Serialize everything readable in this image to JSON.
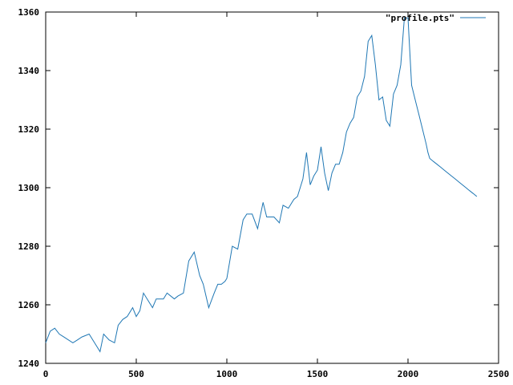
{
  "chart_data": {
    "type": "line",
    "title": "",
    "xlabel": "",
    "ylabel": "",
    "xlim": [
      0,
      2500
    ],
    "ylim": [
      1240,
      1360
    ],
    "xticks": [
      0,
      500,
      1000,
      1500,
      2000,
      2500
    ],
    "yticks": [
      1240,
      1260,
      1280,
      1300,
      1320,
      1340,
      1360
    ],
    "grid": false,
    "legend_position": "top-right",
    "series": [
      {
        "name": "\"profile.pts\"",
        "color": "#1f77b4",
        "x": [
          0,
          25,
          50,
          75,
          100,
          150,
          175,
          200,
          240,
          280,
          300,
          320,
          350,
          380,
          400,
          425,
          450,
          480,
          500,
          520,
          540,
          570,
          590,
          610,
          650,
          670,
          710,
          730,
          760,
          790,
          820,
          850,
          870,
          900,
          930,
          950,
          970,
          990,
          1000,
          1030,
          1060,
          1090,
          1110,
          1140,
          1170,
          1200,
          1220,
          1260,
          1290,
          1310,
          1340,
          1370,
          1390,
          1420,
          1440,
          1460,
          1480,
          1500,
          1520,
          1540,
          1560,
          1580,
          1600,
          1620,
          1640,
          1660,
          1680,
          1700,
          1720,
          1740,
          1760,
          1780,
          1800,
          1820,
          1840,
          1860,
          1880,
          1900,
          1920,
          1940,
          1960,
          1980,
          2000,
          2020,
          2040,
          2060,
          2080,
          2100,
          2110,
          2120,
          2140,
          2160,
          2180,
          2200,
          2220,
          2240,
          2260,
          2280,
          2300,
          2320,
          2340,
          2360,
          2380
        ],
        "values": [
          1247,
          1251,
          1252,
          1250,
          1249,
          1247,
          1248,
          1249,
          1250,
          1246,
          1244,
          1250,
          1248,
          1247,
          1253,
          1255,
          1256,
          1259,
          1256,
          1258,
          1264,
          1261,
          1259,
          1262,
          1262,
          1264,
          1262,
          1263,
          1264,
          1275,
          1278,
          1270,
          1267,
          1259,
          1264,
          1267,
          1267,
          1268,
          1269,
          1280,
          1279,
          1289,
          1291,
          1291,
          1286,
          1295,
          1290,
          1290,
          1288,
          1294,
          1293,
          1296,
          1297,
          1303,
          1312,
          1301,
          1304,
          1306,
          1314,
          1305,
          1299,
          1305,
          1308,
          1308,
          1312,
          1319,
          1322,
          1324,
          1331,
          1333,
          1338,
          1350,
          1352,
          1342,
          1330,
          1331,
          1323,
          1321,
          1332,
          1335,
          1342,
          1358,
          1358,
          1335,
          1330,
          1325,
          1320,
          1315,
          1312,
          1310,
          1309,
          1308,
          1307,
          1306,
          1305,
          1304,
          1303,
          1302,
          1301,
          1300,
          1299,
          1298,
          1297
        ]
      }
    ]
  }
}
